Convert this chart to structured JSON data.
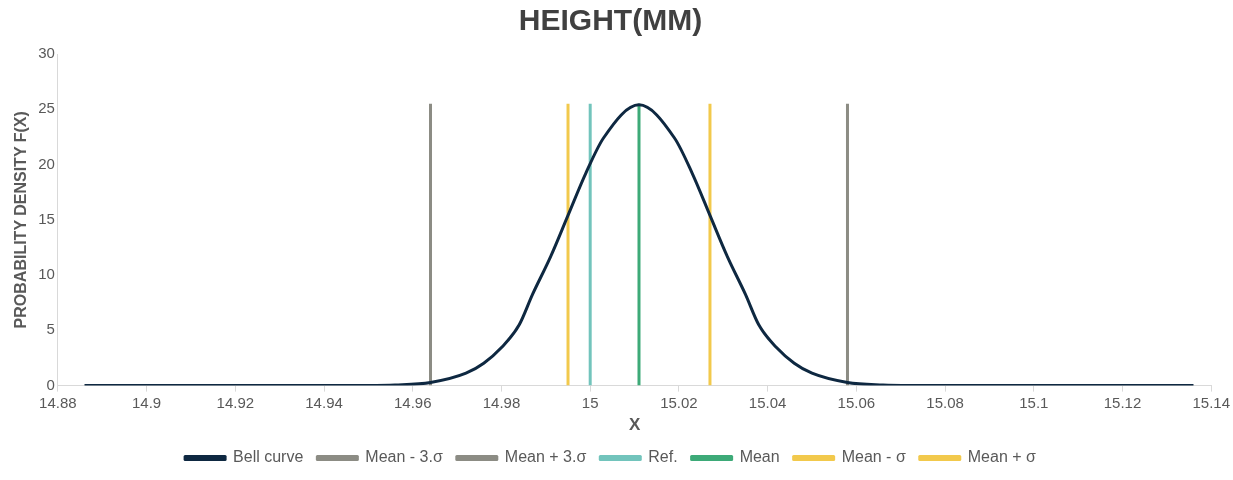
{
  "chart_data": {
    "type": "line",
    "title": "HEIGHT(MM)",
    "xlabel": "X",
    "ylabel": "PROBABILITY DENSITY F(X)",
    "xlim": [
      14.88,
      15.14
    ],
    "xticks": [
      14.88,
      14.9,
      14.92,
      14.94,
      14.96,
      14.98,
      15,
      15.02,
      15.04,
      15.06,
      15.08,
      15.1,
      15.12,
      15.14
    ],
    "ylim": [
      0,
      30
    ],
    "yticks": [
      0,
      5,
      10,
      15,
      20,
      25,
      30
    ],
    "grid": false,
    "legend": "bottom",
    "marker": "none",
    "line_style": "solid",
    "series": [
      {
        "name": "Bell curve",
        "color": "#0e2841",
        "x": [
          14.886,
          14.94,
          14.948,
          14.956,
          14.964,
          14.972,
          14.976,
          14.98,
          14.984,
          14.987,
          14.991,
          14.995,
          14.999,
          15.003,
          15.011,
          15.019,
          15.023,
          15.027,
          15.031,
          15.035,
          15.038,
          15.042,
          15.046,
          15.05,
          15.058,
          15.066,
          15.074,
          15.082,
          15.136
        ],
        "values": [
          0,
          0,
          0.01,
          0.06,
          0.28,
          1.12,
          2.02,
          3.44,
          5.5,
          8.25,
          11.6,
          15.4,
          19.2,
          22.4,
          25.4,
          22.4,
          19.2,
          15.4,
          11.6,
          8.25,
          5.5,
          3.44,
          2.02,
          1.12,
          0.28,
          0.06,
          0.01,
          0,
          0
        ]
      },
      {
        "name": "Mean - 3.σ",
        "color": "#8c8c84",
        "x": [
          14.964,
          14.964
        ],
        "values": [
          0,
          25.5
        ]
      },
      {
        "name": "Mean + 3.σ",
        "color": "#8c8c84",
        "x": [
          15.058,
          15.058
        ],
        "values": [
          0,
          25.5
        ]
      },
      {
        "name": "Ref.",
        "color": "#72c4bc",
        "x": [
          15,
          15
        ],
        "values": [
          0,
          25.5
        ]
      },
      {
        "name": "Mean",
        "color": "#3daa78",
        "x": [
          15.011,
          15.011
        ],
        "values": [
          0,
          25.5
        ]
      },
      {
        "name": "Mean - σ",
        "color": "#f2c94c",
        "x": [
          14.995,
          14.995
        ],
        "values": [
          0,
          25.5
        ]
      },
      {
        "name": "Mean + σ",
        "color": "#f2c94c",
        "x": [
          15.027,
          15.027
        ],
        "values": [
          0,
          25.5
        ]
      }
    ]
  }
}
